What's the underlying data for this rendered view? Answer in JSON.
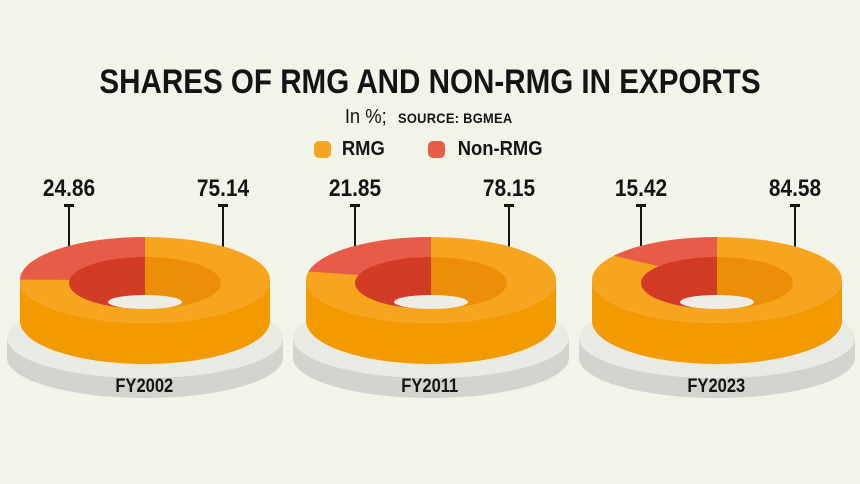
{
  "header": {
    "title": "SHARES OF RMG AND NON-RMG IN EXPORTS",
    "unit_label": "In %;",
    "source_label": "SOURCE: BGMEA"
  },
  "legend": {
    "rmg_label": "RMG",
    "non_rmg_label": "Non-RMG"
  },
  "colors": {
    "background": "#f2f4e9",
    "text": "#141414",
    "rmg_top": "#f7a41e",
    "rmg_side": "#f39a00",
    "rmg_inner_wall": "#ec8f07",
    "non_rmg_top": "#e65c48",
    "non_rmg_inner_wall": "#d23c26",
    "base_top": "#eaeae5",
    "base_side": "#d4d4cf",
    "hole_floor": "#ededE6"
  },
  "chart_data": {
    "type": "pie",
    "subtype": "3d-donut",
    "title": "SHARES OF RMG AND NON-RMG IN EXPORTS",
    "unit": "%",
    "source": "BGMEA",
    "legend_position": "top",
    "legend_entries": [
      "RMG",
      "Non-RMG"
    ],
    "charts": [
      {
        "fy": "FY2002",
        "non_rmg": 24.86,
        "rmg": 75.14
      },
      {
        "fy": "FY2011",
        "non_rmg": 21.85,
        "rmg": 78.15
      },
      {
        "fy": "FY2023",
        "non_rmg": 15.42,
        "rmg": 84.58
      }
    ]
  }
}
